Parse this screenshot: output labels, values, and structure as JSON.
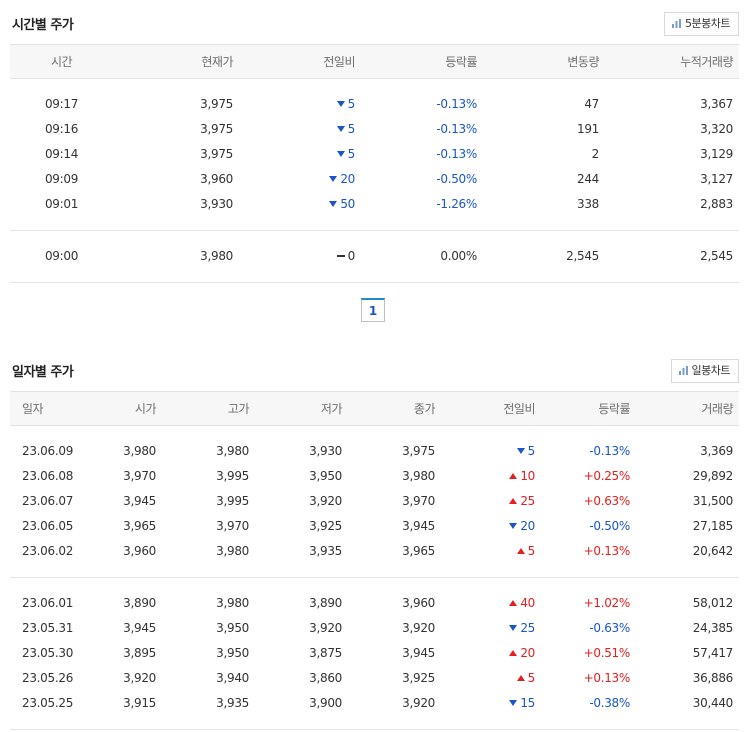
{
  "colors": {
    "down": "#1a56c6",
    "up": "#e22020",
    "page_accent": "#1e8bd1"
  },
  "time_section": {
    "title": "시간별 주가",
    "chart_button": "5분봉차트",
    "chart_icon": "bar-chart-icon",
    "headers": [
      "시간",
      "현재가",
      "전일비",
      "등락률",
      "변동량",
      "누적거래량"
    ],
    "rows": [
      {
        "time": "09:17",
        "price": "3,975",
        "dir": "down",
        "change": "5",
        "rate": "-0.13%",
        "vol_change": "47",
        "cum_volume": "3,367"
      },
      {
        "time": "09:16",
        "price": "3,975",
        "dir": "down",
        "change": "5",
        "rate": "-0.13%",
        "vol_change": "191",
        "cum_volume": "3,320"
      },
      {
        "time": "09:14",
        "price": "3,975",
        "dir": "down",
        "change": "5",
        "rate": "-0.13%",
        "vol_change": "2",
        "cum_volume": "3,129"
      },
      {
        "time": "09:09",
        "price": "3,960",
        "dir": "down",
        "change": "20",
        "rate": "-0.50%",
        "vol_change": "244",
        "cum_volume": "3,127"
      },
      {
        "time": "09:01",
        "price": "3,930",
        "dir": "down",
        "change": "50",
        "rate": "-1.26%",
        "vol_change": "338",
        "cum_volume": "2,883"
      }
    ],
    "rows2": [
      {
        "time": "09:00",
        "price": "3,980",
        "dir": "flat",
        "change": "0",
        "rate": "0.00%",
        "vol_change": "2,545",
        "cum_volume": "2,545"
      }
    ]
  },
  "pagination": {
    "current": "1"
  },
  "daily_section": {
    "title": "일자별 주가",
    "chart_button": "일봉차트",
    "chart_icon": "bar-chart-icon",
    "headers": [
      "일자",
      "시가",
      "고가",
      "저가",
      "종가",
      "전일비",
      "등락률",
      "거래량"
    ],
    "group1": [
      {
        "date": "23.06.09",
        "open": "3,980",
        "high": "3,980",
        "low": "3,930",
        "close": "3,975",
        "dir": "down",
        "change": "5",
        "rate": "-0.13%",
        "volume": "3,369"
      },
      {
        "date": "23.06.08",
        "open": "3,970",
        "high": "3,995",
        "low": "3,950",
        "close": "3,980",
        "dir": "up",
        "change": "10",
        "rate": "+0.25%",
        "volume": "29,892"
      },
      {
        "date": "23.06.07",
        "open": "3,945",
        "high": "3,995",
        "low": "3,920",
        "close": "3,970",
        "dir": "up",
        "change": "25",
        "rate": "+0.63%",
        "volume": "31,500"
      },
      {
        "date": "23.06.05",
        "open": "3,965",
        "high": "3,970",
        "low": "3,925",
        "close": "3,945",
        "dir": "down",
        "change": "20",
        "rate": "-0.50%",
        "volume": "27,185"
      },
      {
        "date": "23.06.02",
        "open": "3,960",
        "high": "3,980",
        "low": "3,935",
        "close": "3,965",
        "dir": "up",
        "change": "5",
        "rate": "+0.13%",
        "volume": "20,642"
      }
    ],
    "group2": [
      {
        "date": "23.06.01",
        "open": "3,890",
        "high": "3,980",
        "low": "3,890",
        "close": "3,960",
        "dir": "up",
        "change": "40",
        "rate": "+1.02%",
        "volume": "58,012"
      },
      {
        "date": "23.05.31",
        "open": "3,945",
        "high": "3,950",
        "low": "3,920",
        "close": "3,920",
        "dir": "down",
        "change": "25",
        "rate": "-0.63%",
        "volume": "24,385"
      },
      {
        "date": "23.05.30",
        "open": "3,895",
        "high": "3,950",
        "low": "3,875",
        "close": "3,945",
        "dir": "up",
        "change": "20",
        "rate": "+0.51%",
        "volume": "57,417"
      },
      {
        "date": "23.05.26",
        "open": "3,920",
        "high": "3,940",
        "low": "3,860",
        "close": "3,925",
        "dir": "up",
        "change": "5",
        "rate": "+0.13%",
        "volume": "36,886"
      },
      {
        "date": "23.05.25",
        "open": "3,915",
        "high": "3,935",
        "low": "3,900",
        "close": "3,920",
        "dir": "down",
        "change": "15",
        "rate": "-0.38%",
        "volume": "30,440"
      }
    ]
  }
}
